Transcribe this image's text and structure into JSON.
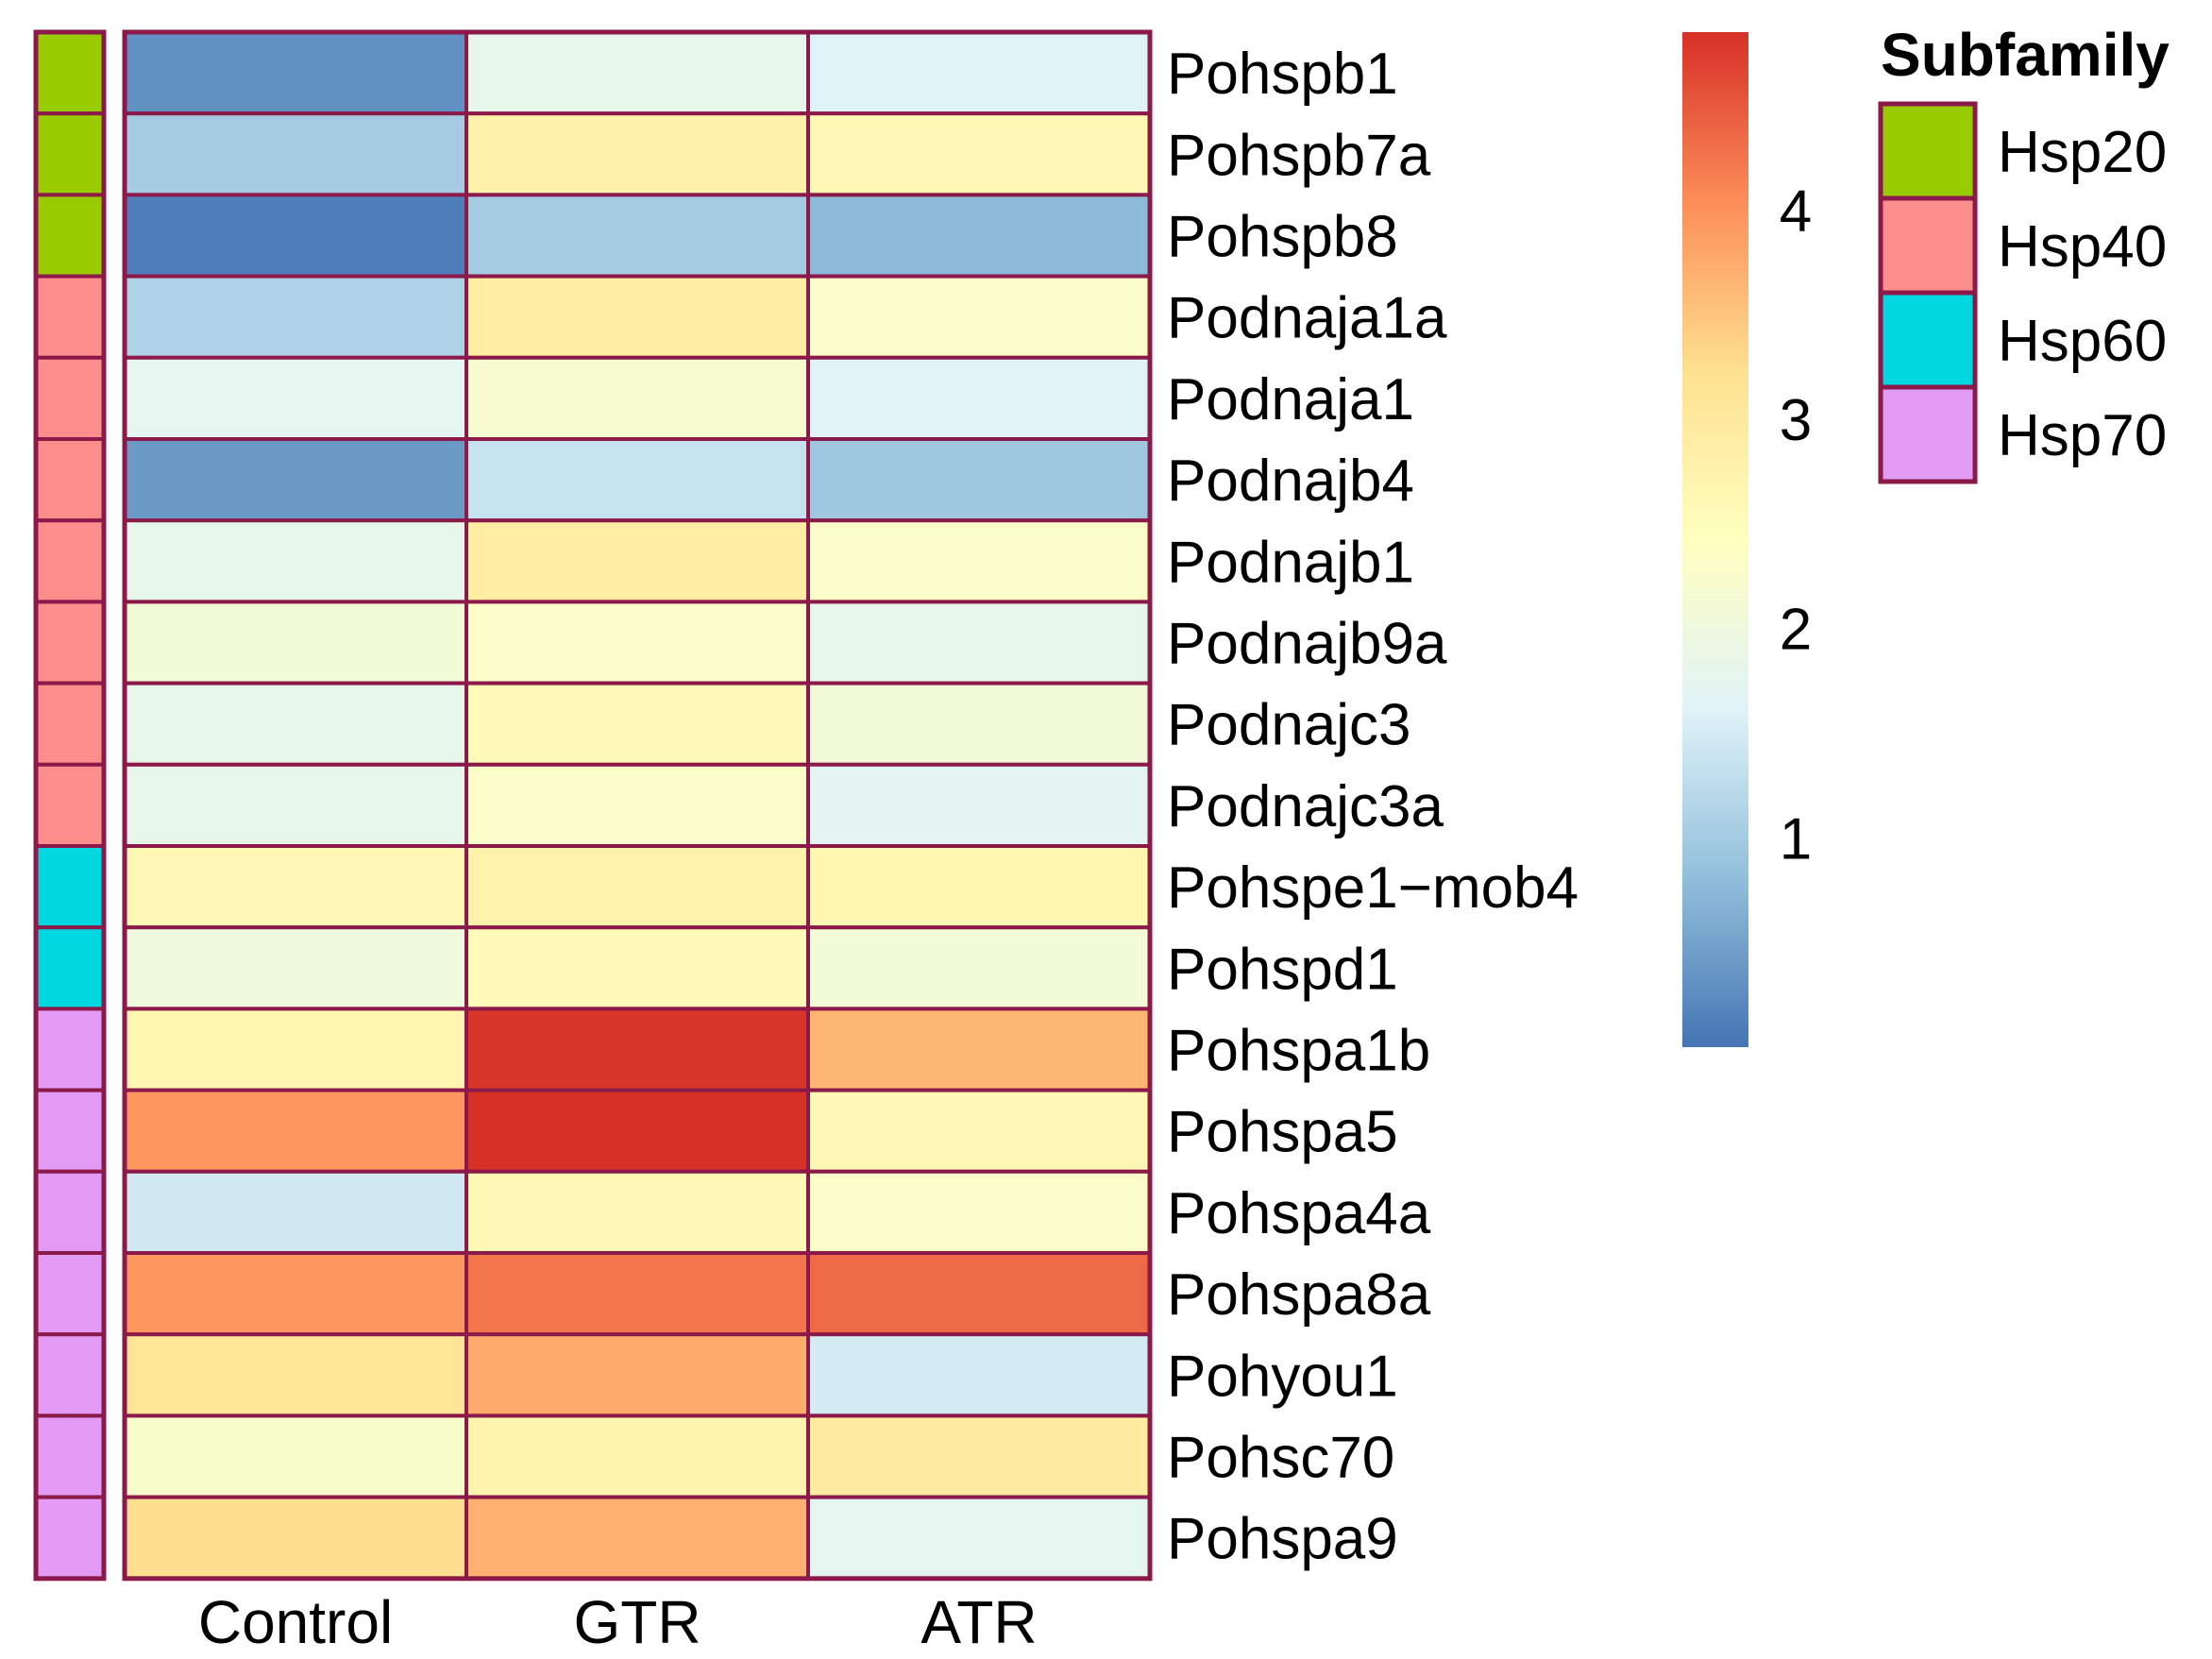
{
  "chart_data": {
    "type": "heatmap",
    "columns": [
      "Control",
      "GTR",
      "ATR"
    ],
    "rows": [
      {
        "gene": "Pohspb1",
        "subfamily": "Hsp20",
        "values": [
          0.3,
          1.8,
          1.6
        ]
      },
      {
        "gene": "Pohspb7a",
        "subfamily": "Hsp20",
        "values": [
          1.0,
          2.8,
          2.6
        ]
      },
      {
        "gene": "Pohspb8",
        "subfamily": "Hsp20",
        "values": [
          0.1,
          1.0,
          0.75
        ]
      },
      {
        "gene": "Podnaja1a",
        "subfamily": "Hsp40",
        "values": [
          1.1,
          2.9,
          2.3
        ]
      },
      {
        "gene": "Podnaja1",
        "subfamily": "Hsp40",
        "values": [
          1.75,
          2.2,
          1.65
        ]
      },
      {
        "gene": "Podnajb4",
        "subfamily": "Hsp40",
        "values": [
          0.4,
          1.35,
          0.95
        ]
      },
      {
        "gene": "Podnajb1",
        "subfamily": "Hsp40",
        "values": [
          1.8,
          2.9,
          2.3
        ]
      },
      {
        "gene": "Podnajb9a",
        "subfamily": "Hsp40",
        "values": [
          2.1,
          2.3,
          1.8
        ]
      },
      {
        "gene": "Podnajc3",
        "subfamily": "Hsp40",
        "values": [
          1.8,
          2.55,
          2.05
        ]
      },
      {
        "gene": "Podnajc3a",
        "subfamily": "Hsp40",
        "values": [
          1.8,
          2.3,
          1.7
        ]
      },
      {
        "gene": "Pohspe1−mob4",
        "subfamily": "Hsp60",
        "values": [
          2.6,
          2.75,
          2.65
        ]
      },
      {
        "gene": "Pohspd1",
        "subfamily": "Hsp60",
        "values": [
          2.0,
          2.55,
          2.1
        ]
      },
      {
        "gene": "Pohspa1b",
        "subfamily": "Hsp70",
        "values": [
          2.65,
          4.8,
          3.65
        ]
      },
      {
        "gene": "Pohspa5",
        "subfamily": "Hsp70",
        "values": [
          3.95,
          4.85,
          2.6
        ]
      },
      {
        "gene": "Pohspa4a",
        "subfamily": "Hsp70",
        "values": [
          1.45,
          2.6,
          2.3
        ]
      },
      {
        "gene": "Pohspa8a",
        "subfamily": "Hsp70",
        "values": [
          3.95,
          4.25,
          4.35
        ]
      },
      {
        "gene": "Pohyou1",
        "subfamily": "Hsp70",
        "values": [
          3.1,
          3.75,
          1.5
        ]
      },
      {
        "gene": "Pohsc70",
        "subfamily": "Hsp70",
        "values": [
          2.25,
          2.7,
          2.95
        ]
      },
      {
        "gene": "Pohspa9",
        "subfamily": "Hsp70",
        "values": [
          3.25,
          3.7,
          1.75
        ]
      }
    ],
    "colorbar": {
      "range": [
        0,
        4.85
      ],
      "ticks": [
        1,
        2,
        3,
        4
      ],
      "colors": [
        "#4575b4",
        "#91bfdb",
        "#e0f3f8",
        "#ffffbf",
        "#fee090",
        "#fc8d59",
        "#d73027"
      ]
    },
    "legend": {
      "title": "Subfamily",
      "position": "top-right",
      "items": [
        {
          "label": "Hsp20",
          "color": "#99cc00"
        },
        {
          "label": "Hsp40",
          "color": "#fc8d8d"
        },
        {
          "label": "Hsp60",
          "color": "#00d7e0"
        },
        {
          "label": "Hsp70",
          "color": "#e29af5"
        }
      ]
    },
    "border_color": "#8b1a4a"
  }
}
